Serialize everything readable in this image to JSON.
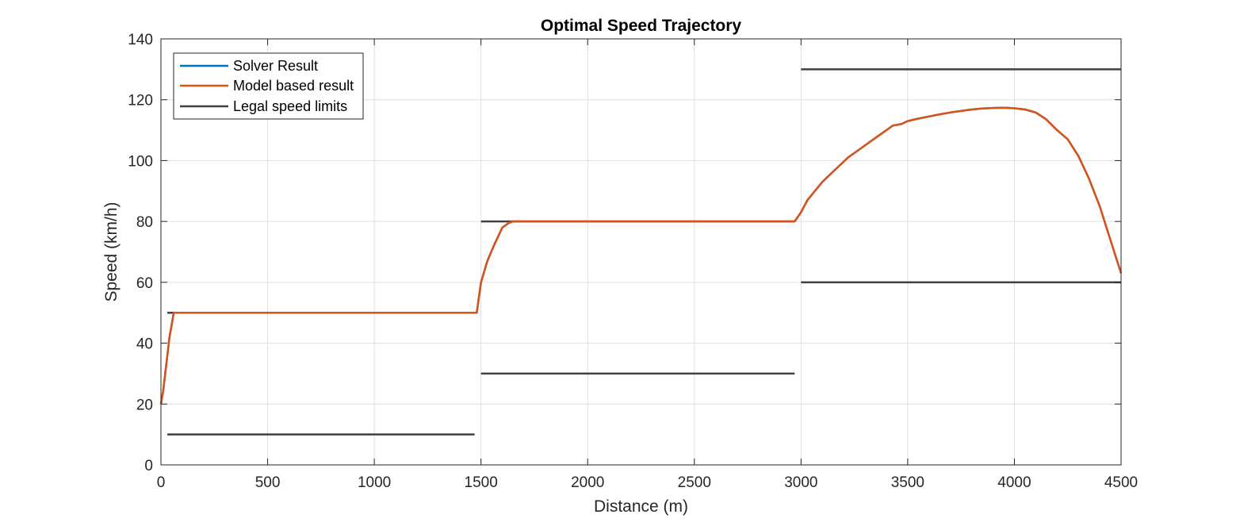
{
  "chart_data": {
    "type": "line",
    "title": "Optimal Speed Trajectory",
    "xlabel": "Distance (m)",
    "ylabel": "Speed (km/h)",
    "xlim": [
      0,
      4500
    ],
    "ylim": [
      0,
      140
    ],
    "xticks": [
      0,
      500,
      1000,
      1500,
      2000,
      2500,
      3000,
      3500,
      4000,
      4500
    ],
    "yticks": [
      0,
      20,
      40,
      60,
      80,
      100,
      120,
      140
    ],
    "grid": true,
    "legend": {
      "location": "top-left",
      "entries": [
        "Solver Result",
        "Model based result",
        "Legal speed limits"
      ]
    },
    "colors": {
      "solver": "#0072BD",
      "model": "#D95319",
      "limits": "#404040",
      "grid": "#dfdfdf",
      "axis": "#262626"
    },
    "series": [
      {
        "name": "Solver Result",
        "x": [
          0,
          10,
          20,
          30,
          40,
          50,
          60,
          80,
          200,
          400,
          600,
          800,
          1000,
          1200,
          1400,
          1470,
          1480,
          1500,
          1530,
          1560,
          1600,
          1630,
          1650,
          1680,
          1720,
          1800,
          2000,
          2200,
          2400,
          2600,
          2800,
          2970,
          3000,
          3030,
          3100,
          3160,
          3220,
          3280,
          3320,
          3360,
          3400,
          3430,
          3470,
          3500,
          3550,
          3600,
          3650,
          3700,
          3750,
          3800,
          3850,
          3900,
          3950,
          4000,
          4050,
          4100,
          4150,
          4200,
          4250,
          4300,
          4350,
          4400,
          4450,
          4500
        ],
        "y": [
          20,
          24,
          30,
          36,
          42,
          46,
          50,
          50,
          50,
          50,
          50,
          50,
          50,
          50,
          50,
          50,
          50,
          60,
          67,
          72,
          78,
          79.5,
          80,
          80,
          80,
          80,
          80,
          80,
          80,
          80,
          80,
          80,
          83,
          87,
          93,
          97,
          101,
          104,
          106,
          108,
          110,
          111.5,
          112,
          113,
          113.8,
          114.5,
          115.2,
          115.8,
          116.3,
          116.8,
          117.1,
          117.3,
          117.4,
          117.2,
          116.8,
          115.8,
          113.5,
          110,
          107,
          101.5,
          94,
          85,
          74,
          63
        ]
      },
      {
        "name": "Model based result",
        "x": [
          0,
          10,
          20,
          30,
          40,
          50,
          60,
          80,
          200,
          400,
          600,
          800,
          1000,
          1200,
          1400,
          1470,
          1480,
          1500,
          1530,
          1560,
          1600,
          1630,
          1650,
          1680,
          1720,
          1800,
          2000,
          2200,
          2400,
          2600,
          2800,
          2970,
          3000,
          3030,
          3100,
          3160,
          3220,
          3280,
          3320,
          3360,
          3400,
          3430,
          3470,
          3500,
          3550,
          3600,
          3650,
          3700,
          3750,
          3800,
          3850,
          3900,
          3950,
          4000,
          4050,
          4100,
          4150,
          4200,
          4250,
          4300,
          4350,
          4400,
          4450,
          4500
        ],
        "y": [
          20,
          24,
          30,
          36,
          42,
          46,
          50,
          50,
          50,
          50,
          50,
          50,
          50,
          50,
          50,
          50,
          50,
          60,
          67,
          72,
          78,
          79.5,
          80,
          80,
          80,
          80,
          80,
          80,
          80,
          80,
          80,
          80,
          83,
          87,
          93,
          97,
          101,
          104,
          106,
          108,
          110,
          111.5,
          112,
          113,
          113.8,
          114.5,
          115.2,
          115.8,
          116.3,
          116.8,
          117.1,
          117.3,
          117.4,
          117.2,
          116.8,
          115.8,
          113.5,
          110,
          107,
          101.5,
          94,
          85,
          74,
          63
        ]
      }
    ],
    "speed_limits": [
      {
        "x": [
          30,
          1470
        ],
        "y": 50
      },
      {
        "x": [
          30,
          1470
        ],
        "y": 10
      },
      {
        "x": [
          1500,
          2970
        ],
        "y": 80
      },
      {
        "x": [
          1500,
          2970
        ],
        "y": 30
      },
      {
        "x": [
          3000,
          4500
        ],
        "y": 130
      },
      {
        "x": [
          3000,
          4500
        ],
        "y": 60
      }
    ]
  }
}
